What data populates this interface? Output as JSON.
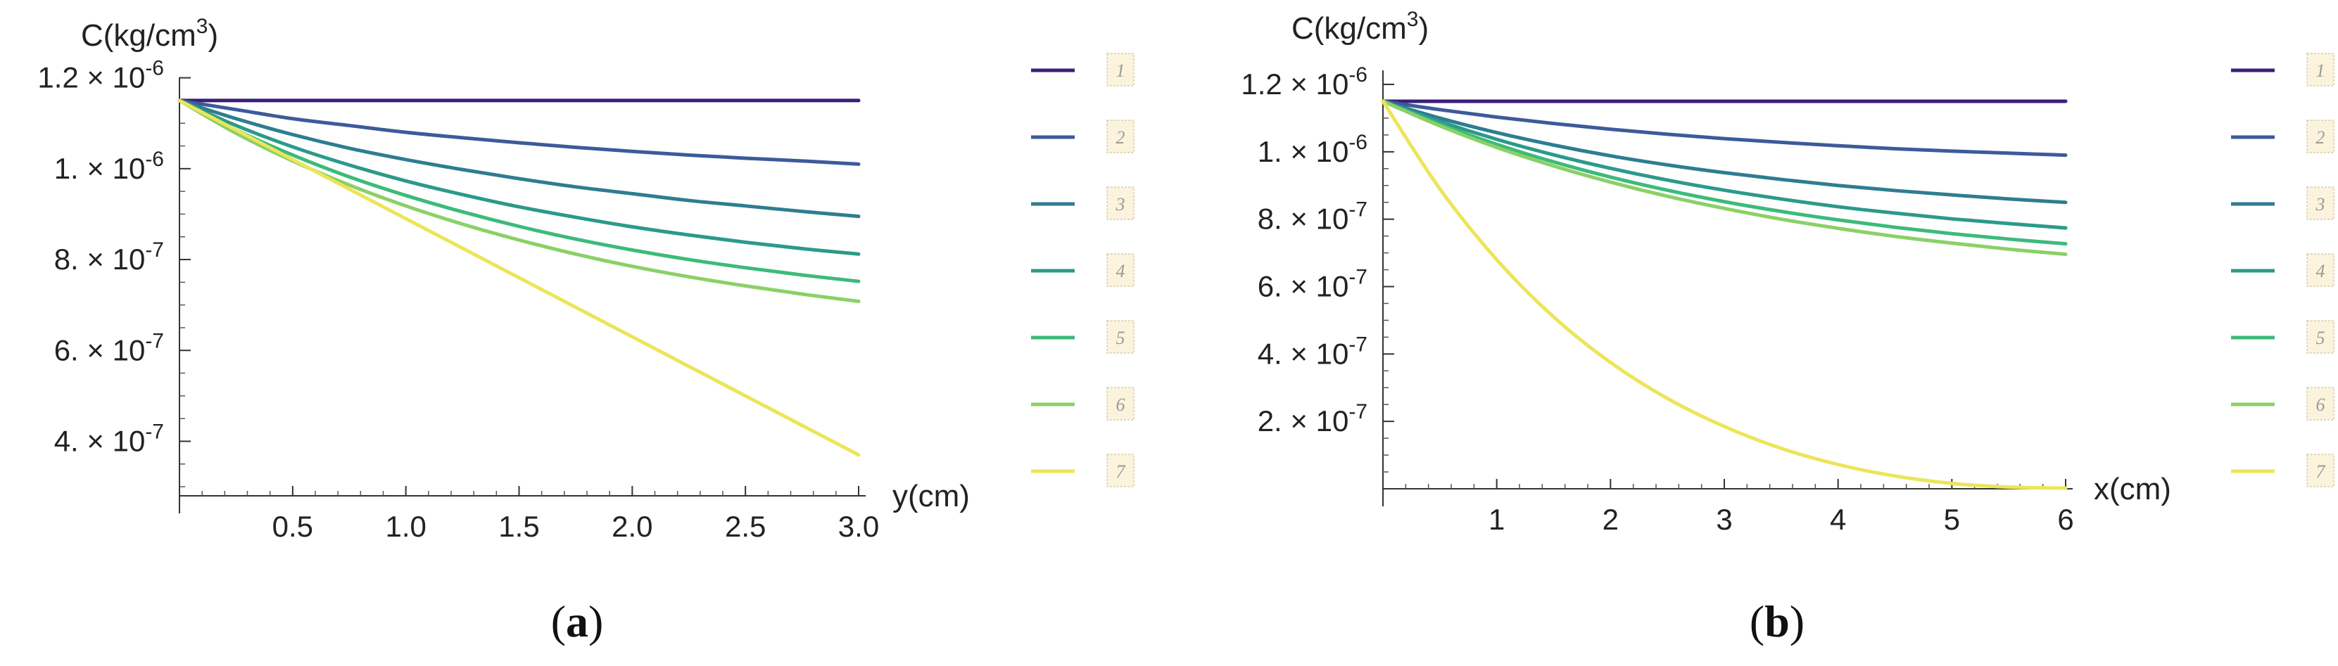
{
  "chart_data": [
    {
      "panel": "a",
      "caption": "(a)",
      "type": "line",
      "ylabel": "C(kg/cm³)",
      "xlabel": "y(cm)",
      "xlim": [
        0,
        3.0
      ],
      "ylim": [
        2.8e-07,
        1.17e-06
      ],
      "x_ticks": [
        0.5,
        1.0,
        1.5,
        2.0,
        2.5,
        3.0
      ],
      "x_tick_labels": [
        "0.5",
        "1.0",
        "1.5",
        "2.0",
        "2.5",
        "3.0"
      ],
      "y_ticks": [
        4e-07,
        6e-07,
        8e-07,
        1e-06,
        1.2e-06
      ],
      "y_tick_mantissa": [
        "4.",
        "6.",
        "8.",
        "1.",
        "1.2"
      ],
      "y_tick_exponent": [
        "-7",
        "-7",
        "-7",
        "-6",
        "-6"
      ],
      "x": [
        0,
        0.25,
        0.5,
        0.75,
        1.0,
        1.25,
        1.5,
        1.75,
        2.0,
        2.25,
        2.5,
        2.75,
        3.0
      ],
      "series": [
        {
          "name": "1",
          "color": "#3b1e78",
          "values": [
            1.15e-06,
            1.15e-06,
            1.15e-06,
            1.15e-06,
            1.15e-06,
            1.15e-06,
            1.15e-06,
            1.15e-06,
            1.15e-06,
            1.15e-06,
            1.15e-06,
            1.15e-06,
            1.15e-06
          ]
        },
        {
          "name": "2",
          "color": "#3d5a9a",
          "values": [
            1.15e-06,
            1.13e-06,
            1.11e-06,
            1.095e-06,
            1.08e-06,
            1.068e-06,
            1.057e-06,
            1.047e-06,
            1.038e-06,
            1.03e-06,
            1.023e-06,
            1.017e-06,
            1.01e-06
          ]
        },
        {
          "name": "3",
          "color": "#2e7d91",
          "values": [
            1.15e-06,
            1.11e-06,
            1.075e-06,
            1.045e-06,
            1.02e-06,
            9.98e-07,
            9.78e-07,
            9.6e-07,
            9.45e-07,
            9.3e-07,
            9.18e-07,
            9.06e-07,
            8.95e-07
          ]
        },
        {
          "name": "4",
          "color": "#2b9a8a",
          "values": [
            1.15e-06,
            1.095e-06,
            1.048e-06,
            1.008e-06,
            9.73e-07,
            9.43e-07,
            9.16e-07,
            8.93e-07,
            8.72e-07,
            8.54e-07,
            8.38e-07,
            8.24e-07,
            8.12e-07
          ]
        },
        {
          "name": "5",
          "color": "#3dba7a",
          "values": [
            1.15e-06,
            1.085e-06,
            1.03e-06,
            9.82e-07,
            9.41e-07,
            9.05e-07,
            8.73e-07,
            8.45e-07,
            8.21e-07,
            8e-07,
            7.82e-07,
            7.66e-07,
            7.52e-07
          ]
        },
        {
          "name": "6",
          "color": "#8bd066",
          "values": [
            1.15e-06,
            1.078e-06,
            1.017e-06,
            9.64e-07,
            9.18e-07,
            8.78e-07,
            8.43e-07,
            8.12e-07,
            7.85e-07,
            7.62e-07,
            7.42e-07,
            7.24e-07,
            7.08e-07
          ]
        },
        {
          "name": "7",
          "color": "#ece55a",
          "values": [
            1.15e-06,
            1.085e-06,
            1.02e-06,
            9.55e-07,
            8.9e-07,
            8.25e-07,
            7.6e-07,
            6.95e-07,
            6.3e-07,
            5.65e-07,
            5e-07,
            4.35e-07,
            3.7e-07
          ]
        }
      ]
    },
    {
      "panel": "b",
      "caption": "(b)",
      "type": "line",
      "ylabel": "C(kg/cm³)",
      "xlabel": "x(cm)",
      "xlim": [
        0,
        6.0
      ],
      "ylim": [
        0,
        1.2e-06
      ],
      "x_ticks": [
        1,
        2,
        3,
        4,
        5,
        6
      ],
      "x_tick_labels": [
        "1",
        "2",
        "3",
        "4",
        "5",
        "6"
      ],
      "y_ticks": [
        2e-07,
        4e-07,
        6e-07,
        8e-07,
        1e-06,
        1.2e-06
      ],
      "y_tick_mantissa": [
        "2.",
        "4.",
        "6.",
        "8.",
        "1.",
        "1.2"
      ],
      "y_tick_exponent": [
        "-7",
        "-7",
        "-7",
        "-7",
        "-6",
        "-6"
      ],
      "x": [
        0,
        0.5,
        1,
        1.5,
        2,
        2.5,
        3,
        3.5,
        4,
        4.5,
        5,
        5.5,
        6
      ],
      "series": [
        {
          "name": "1",
          "color": "#3b1e78",
          "values": [
            1.15e-06,
            1.15e-06,
            1.15e-06,
            1.15e-06,
            1.15e-06,
            1.15e-06,
            1.15e-06,
            1.15e-06,
            1.15e-06,
            1.15e-06,
            1.15e-06,
            1.15e-06,
            1.15e-06
          ]
        },
        {
          "name": "2",
          "color": "#3d5a9a",
          "values": [
            1.15e-06,
            1.125e-06,
            1.103e-06,
            1.084e-06,
            1.067e-06,
            1.052e-06,
            1.039e-06,
            1.028e-06,
            1.018e-06,
            1.009e-06,
            1.002e-06,
            9.96e-07,
            9.9e-07
          ]
        },
        {
          "name": "3",
          "color": "#2e7d91",
          "values": [
            1.15e-06,
            1.1e-06,
            1.057e-06,
            1.02e-06,
            9.88e-07,
            9.61e-07,
            9.38e-07,
            9.18e-07,
            9e-07,
            8.85e-07,
            8.72e-07,
            8.6e-07,
            8.5e-07
          ]
        },
        {
          "name": "4",
          "color": "#2b9a8a",
          "values": [
            1.15e-06,
            1.09e-06,
            1.037e-06,
            9.91e-07,
            9.51e-07,
            9.16e-07,
            8.86e-07,
            8.6e-07,
            8.37e-07,
            8.18e-07,
            8.01e-07,
            7.87e-07,
            7.74e-07
          ]
        },
        {
          "name": "5",
          "color": "#3dba7a",
          "values": [
            1.15e-06,
            1.082e-06,
            1.022e-06,
            9.7e-07,
            9.25e-07,
            8.86e-07,
            8.52e-07,
            8.23e-07,
            7.98e-07,
            7.76e-07,
            7.57e-07,
            7.41e-07,
            7.27e-07
          ]
        },
        {
          "name": "6",
          "color": "#8bd066",
          "values": [
            1.15e-06,
            1.077e-06,
            1.013e-06,
            9.58e-07,
            9.1e-07,
            8.68e-07,
            8.32e-07,
            8e-07,
            7.73e-07,
            7.49e-07,
            7.29e-07,
            7.11e-07,
            6.96e-07
          ]
        },
        {
          "name": "7",
          "color": "#ece55a",
          "values": [
            1.15e-06,
            8.9e-07,
            6.8e-07,
            5.1e-07,
            3.75e-07,
            2.68e-07,
            1.85e-07,
            1.2e-07,
            7.2e-08,
            3.8e-08,
            1.6e-08,
            5e-09,
            2e-09
          ]
        }
      ]
    }
  ]
}
